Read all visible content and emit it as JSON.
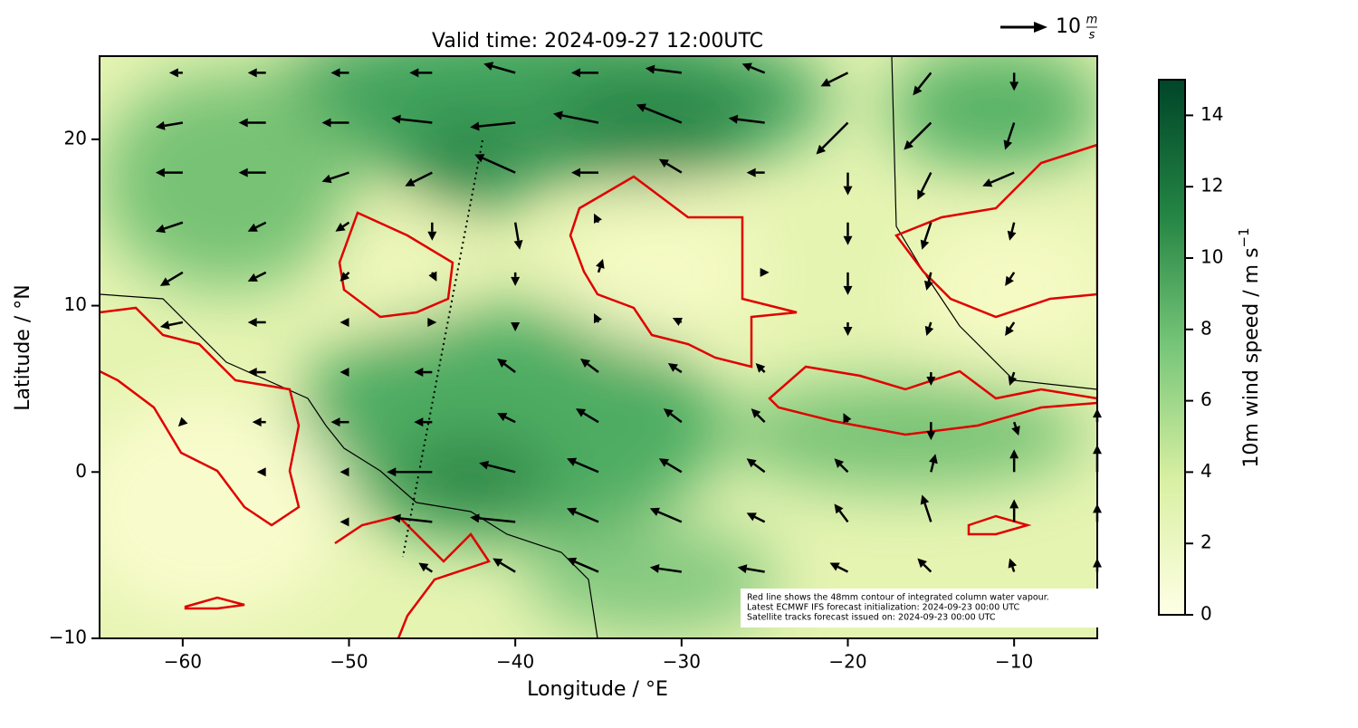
{
  "map": {
    "title": "Valid time: 2024-09-27 12:00UTC",
    "xlabel": "Longitude / °E",
    "ylabel": "Latitude / °N",
    "xlim": [
      -65,
      -5
    ],
    "ylim": [
      -10,
      25
    ],
    "xticks": [
      {
        "value": -60,
        "label": "−60"
      },
      {
        "value": -50,
        "label": "−50"
      },
      {
        "value": -40,
        "label": "−40"
      },
      {
        "value": -30,
        "label": "−30"
      },
      {
        "value": -20,
        "label": "−20"
      },
      {
        "value": -10,
        "label": "−10"
      }
    ],
    "yticks": [
      {
        "value": -10,
        "label": "−10"
      },
      0,
      10,
      20
    ],
    "colorbar": {
      "label": "10m wind speed / m s",
      "label_sup": "−1",
      "lim": [
        0,
        15
      ],
      "ticks": [
        0,
        2,
        4,
        6,
        8,
        10,
        12,
        14
      ],
      "colors": [
        "#ffffe5",
        "#d9f0a3",
        "#78c679",
        "#238443",
        "#004529"
      ]
    },
    "quiver_key": {
      "value": 10,
      "unit_num": "m",
      "unit_den": "s"
    },
    "annotation": [
      "Red line shows the 48mm contour of integrated column water vapour.",
      "Latest ECMWF IFS forecast initialization: 2024-09-23 00:00 UTC",
      "Satellite tracks forecast issued on: 2024-09-23 00:00 UTC"
    ],
    "wind": {
      "lon": [
        -60,
        -55,
        -50,
        -45,
        -40,
        -35,
        -30,
        -25,
        -20,
        -15,
        -10,
        -5
      ],
      "lat": [
        24,
        21,
        18,
        15,
        12,
        9,
        6,
        3,
        0,
        -3,
        -6
      ],
      "u": [
        [
          -3,
          -4,
          -4,
          -5,
          -7,
          -6,
          -8,
          -5,
          -6,
          -4,
          0,
          0
        ],
        [
          -6,
          -6,
          -6,
          -9,
          -10,
          -10,
          -10,
          -8,
          -7,
          -6,
          -2,
          0
        ],
        [
          -6,
          -6,
          -6,
          -6,
          -9,
          -6,
          -5,
          -4,
          0,
          -3,
          -7,
          0
        ],
        [
          -6,
          -4,
          -3,
          0,
          1,
          -1,
          0,
          0,
          0,
          -2,
          -1,
          0
        ],
        [
          -5,
          -4,
          -2,
          1,
          0,
          1,
          0,
          1,
          0,
          -1,
          -2,
          0
        ],
        [
          -5,
          -4,
          -2,
          1,
          0,
          -1,
          -2,
          0,
          0,
          -1,
          -2,
          0
        ],
        [
          0,
          -4,
          -2,
          -4,
          -4,
          -4,
          -3,
          -2,
          0,
          0,
          -1,
          0
        ],
        [
          -1,
          -3,
          -4,
          -4,
          -4,
          -5,
          -4,
          -3,
          -1,
          0,
          1,
          0
        ],
        [
          0,
          -2,
          -2,
          -10,
          -8,
          -7,
          -5,
          -4,
          -3,
          1,
          0,
          0
        ],
        [
          0,
          0,
          -2,
          -9,
          -10,
          -7,
          -7,
          -4,
          -3,
          -2,
          0,
          0
        ],
        [
          0,
          0,
          0,
          -3,
          -5,
          -7,
          -7,
          -6,
          -4,
          -3,
          -1,
          0
        ]
      ],
      "v": [
        [
          0,
          0,
          0,
          0,
          2,
          0,
          1,
          2,
          -3,
          -5,
          -4,
          0
        ],
        [
          -1,
          0,
          0,
          1,
          -1,
          2,
          4,
          1,
          -7,
          -6,
          -6,
          0
        ],
        [
          0,
          0,
          -2,
          -3,
          4,
          0,
          3,
          0,
          -5,
          -6,
          -3,
          0
        ],
        [
          -2,
          -2,
          -2,
          -4,
          -6,
          2,
          0,
          0,
          -5,
          -6,
          -4,
          0
        ],
        [
          -3,
          -2,
          -2,
          -2,
          -3,
          3,
          0,
          0,
          -5,
          -4,
          -3,
          0
        ],
        [
          -1,
          0,
          0,
          0,
          -2,
          2,
          1,
          0,
          -3,
          -3,
          -3,
          0
        ],
        [
          0,
          0,
          0,
          0,
          3,
          3,
          2,
          2,
          0,
          -3,
          -3,
          0
        ],
        [
          -1,
          0,
          0,
          0,
          2,
          3,
          3,
          3,
          2,
          -4,
          -3,
          3
        ],
        [
          0,
          0,
          0,
          0,
          2,
          3,
          3,
          3,
          3,
          4,
          5,
          6
        ],
        [
          0,
          0,
          0,
          1,
          1,
          3,
          3,
          2,
          4,
          6,
          5,
          4
        ],
        [
          0,
          0,
          0,
          2,
          3,
          3,
          1,
          1,
          2,
          3,
          3,
          3
        ]
      ]
    }
  }
}
